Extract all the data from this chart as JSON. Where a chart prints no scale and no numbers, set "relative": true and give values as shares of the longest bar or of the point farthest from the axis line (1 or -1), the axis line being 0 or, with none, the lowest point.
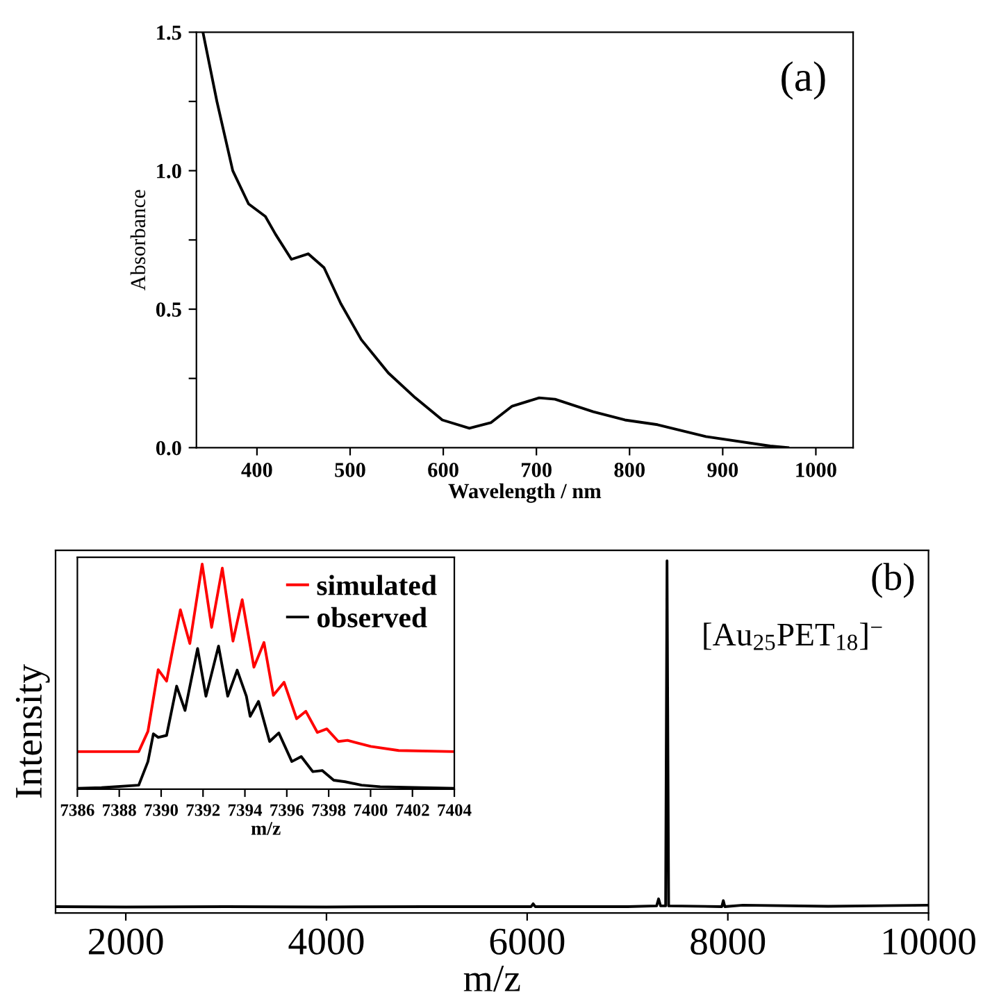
{
  "chart_data": [
    {
      "type": "line",
      "xlabel": "Wavelength / nm",
      "ylabel": "Absorbance",
      "annotations": [
        "(a)"
      ],
      "xlim": [
        335,
        1040
      ],
      "ylim": [
        0,
        1.5
      ],
      "xticks": [
        400,
        500,
        600,
        700,
        800,
        900,
        1000
      ],
      "yticks": [
        {
          "value": 0.0,
          "label": "0.0"
        },
        {
          "value": 0.25,
          "label": null
        },
        0.5,
        {
          "value": 0.75,
          "label": null
        },
        {
          "value": 1.0,
          "label": "1.0"
        },
        {
          "value": 1.25,
          "label": null
        },
        1.5
      ],
      "legend": false,
      "grid": false,
      "series": [
        {
          "color": "#000000",
          "x": [
            342,
            357,
            374,
            391,
            409,
            420,
            437,
            455,
            472,
            490,
            512,
            541,
            570,
            599,
            628,
            651,
            674,
            703,
            720,
            761,
            795,
            830,
            882,
            951,
            970
          ],
          "values": [
            1.5,
            1.25,
            1.0,
            0.88,
            0.835,
            0.77,
            0.68,
            0.7,
            0.65,
            0.52,
            0.39,
            0.27,
            0.18,
            0.1,
            0.07,
            0.09,
            0.15,
            0.18,
            0.175,
            0.13,
            0.1,
            0.083,
            0.04,
            0.006,
            0.0
          ]
        }
      ]
    },
    {
      "type": "line",
      "relative": true,
      "xlabel": "m/z",
      "ylabel": "Intensity",
      "annotations": [
        "(b)",
        "[Au$_{25}$PET$_{18}$]$^{−}$"
      ],
      "xlim": [
        1300,
        10000
      ],
      "xticks": [
        2000,
        4000,
        6000,
        8000,
        10000
      ],
      "tick_labels": "x",
      "legend": false,
      "grid": false,
      "series": [
        {
          "color": "#000000",
          "x": [
            1300,
            2000,
            3000,
            4000,
            5000,
            6040,
            6060,
            6080,
            7000,
            7290,
            7310,
            7330,
            7380,
            7394,
            7410,
            7940,
            7955,
            7970,
            8150,
            9000,
            10000
          ],
          "values": [
            0.018,
            0.017,
            0.018,
            0.017,
            0.018,
            0.018,
            0.026,
            0.018,
            0.018,
            0.02,
            0.04,
            0.02,
            0.02,
            1.0,
            0.02,
            0.018,
            0.035,
            0.018,
            0.022,
            0.019,
            0.022
          ]
        }
      ]
    },
    {
      "type": "line",
      "relative": true,
      "xlabel": "m/z",
      "xlim": [
        7386,
        7404
      ],
      "xticks": [
        7386,
        7388,
        7390,
        7392,
        7394,
        7396,
        7398,
        7400,
        7402,
        7404
      ],
      "tick_labels": "x",
      "legend": "top right",
      "grid": false,
      "series": [
        {
          "name": "simulated",
          "color": "#ff0000",
          "x": [
            7386,
            7388.93,
            7389.37,
            7389.86,
            7390.26,
            7390.92,
            7391.37,
            7391.96,
            7392.41,
            7392.92,
            7393.43,
            7393.87,
            7394.43,
            7394.91,
            7395.36,
            7395.87,
            7396.47,
            7396.91,
            7397.46,
            7397.91,
            7398.46,
            7398.9,
            7400.01,
            7401.34,
            7404
          ],
          "values": [
            0.167,
            0.167,
            0.257,
            0.531,
            0.48,
            0.797,
            0.647,
            1.0,
            0.719,
            0.982,
            0.658,
            0.842,
            0.542,
            0.652,
            0.417,
            0.475,
            0.313,
            0.346,
            0.252,
            0.268,
            0.212,
            0.217,
            0.19,
            0.172,
            0.167
          ]
        },
        {
          "name": "observed",
          "color": "#000000",
          "x": [
            7386,
            7387.15,
            7388.93,
            7389.37,
            7389.63,
            7389.86,
            7390.26,
            7390.74,
            7391.14,
            7391.74,
            7392.14,
            7392.74,
            7393.18,
            7393.63,
            7394.07,
            7394.25,
            7394.65,
            7395.18,
            7395.62,
            7396.24,
            7396.69,
            7397.24,
            7397.69,
            7398.24,
            7398.79,
            7399.57,
            7400.46,
            7404
          ],
          "values": [
            0.004,
            0.007,
            0.018,
            0.123,
            0.246,
            0.23,
            0.239,
            0.458,
            0.35,
            0.625,
            0.413,
            0.636,
            0.413,
            0.529,
            0.413,
            0.324,
            0.39,
            0.212,
            0.25,
            0.123,
            0.145,
            0.078,
            0.083,
            0.04,
            0.033,
            0.018,
            0.011,
            0.004
          ]
        }
      ]
    }
  ]
}
